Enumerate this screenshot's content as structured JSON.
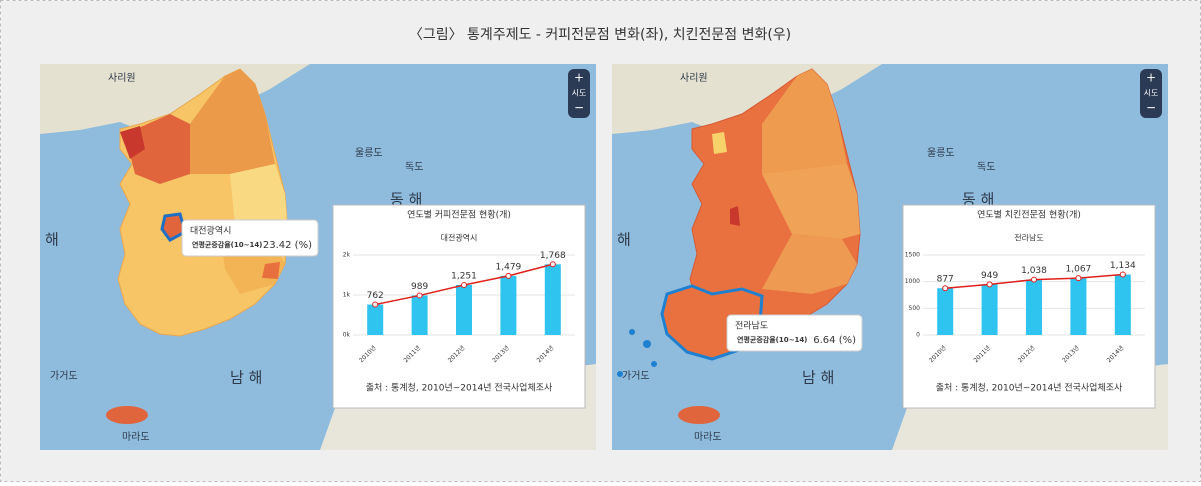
{
  "header": {
    "title": "〈그림〉 통계주제도 - 커피전문점 변화(좌), 치킨전문점 변화(우)"
  },
  "maps": [
    {
      "labels": [
        "사리원",
        "울릉도",
        "독도",
        "동 해",
        "해",
        "남 해",
        "가거도",
        "마라도"
      ],
      "zoom": {
        "in": "+",
        "level": "시도",
        "out": "−"
      },
      "tooltip": {
        "region": "대전광역시",
        "metric": "연평균증감율(10~14)",
        "value": "23.42 (%)"
      }
    },
    {
      "labels": [
        "사리원",
        "울릉도",
        "독도",
        "동 해",
        "해",
        "남 해",
        "가거도",
        "마라도"
      ],
      "zoom": {
        "in": "+",
        "level": "시도",
        "out": "−"
      },
      "tooltip": {
        "region": "전라남도",
        "metric": "연평균증감율(10~14)",
        "value": "6.64 (%)"
      }
    }
  ],
  "chart_data": [
    {
      "type": "bar",
      "title": "연도별 커피전문점 현황(개)",
      "subtitle": "대전광역시",
      "categories": [
        "2010년",
        "2011년",
        "2012년",
        "2013년",
        "2014년"
      ],
      "values": [
        762,
        989,
        1251,
        1479,
        1768
      ],
      "value_labels": [
        "762",
        "989",
        "1,251",
        "1,479",
        "1,768"
      ],
      "bar_color": "#2ec4ef",
      "line_color": "#e0201b",
      "ylim": [
        0,
        2000
      ],
      "yticks": [
        {
          "value": 0,
          "label": "0k"
        },
        {
          "value": 1000,
          "label": "1k"
        },
        {
          "value": 2000,
          "label": "2k"
        }
      ],
      "grid": true,
      "source": "출처 : 통계청, 2010년~2014년 전국사업체조사"
    },
    {
      "type": "bar",
      "title": "연도별 치킨전문점 현황(개)",
      "subtitle": "전라남도",
      "categories": [
        "2010년",
        "2011년",
        "2012년",
        "2013년",
        "2014년"
      ],
      "values": [
        877,
        949,
        1038,
        1067,
        1134
      ],
      "value_labels": [
        "877",
        "949",
        "1,038",
        "1,067",
        "1,134"
      ],
      "bar_color": "#2ec4ef",
      "line_color": "#e0201b",
      "ylim": [
        0,
        1500
      ],
      "yticks": [
        0,
        500,
        1000,
        1500
      ],
      "grid": true,
      "source": "출처 : 통계청, 2010년~2014년 전국사업체조사"
    }
  ]
}
